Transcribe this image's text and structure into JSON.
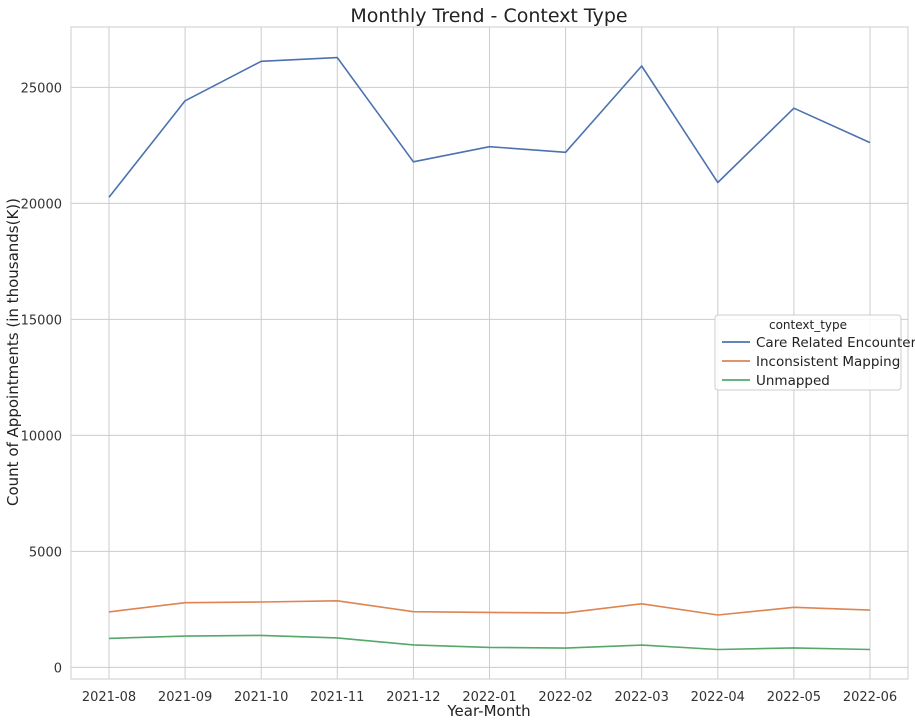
{
  "chart_data": {
    "type": "line",
    "title": "Monthly Trend - Context Type",
    "xlabel": "Year-Month",
    "ylabel": "Count of Appointments (in thousands(K))",
    "categories": [
      "2021-08",
      "2021-09",
      "2021-10",
      "2021-11",
      "2021-12",
      "2022-01",
      "2022-02",
      "2022-03",
      "2022-04",
      "2022-05",
      "2022-06"
    ],
    "yticks": [
      0,
      5000,
      10000,
      15000,
      20000,
      25000
    ],
    "ytick_labels": [
      "0",
      "5000",
      "10000",
      "15000",
      "20000",
      "25000"
    ],
    "ylim": [
      -500,
      27600
    ],
    "grid": true,
    "legend": {
      "title": "context_type",
      "placement": "center-right"
    },
    "series": [
      {
        "name": "Care Related Encounter",
        "color": "#4c72b0",
        "values": [
          20260,
          24420,
          26120,
          26280,
          21790,
          22440,
          22200,
          25920,
          20900,
          24100,
          22620
        ]
      },
      {
        "name": "Inconsistent Mapping",
        "color": "#dd8452",
        "values": [
          2390,
          2790,
          2820,
          2870,
          2400,
          2370,
          2350,
          2740,
          2260,
          2590,
          2470
        ]
      },
      {
        "name": "Unmapped",
        "color": "#55a868",
        "values": [
          1250,
          1350,
          1380,
          1270,
          970,
          860,
          830,
          960,
          770,
          840,
          770
        ]
      }
    ]
  }
}
